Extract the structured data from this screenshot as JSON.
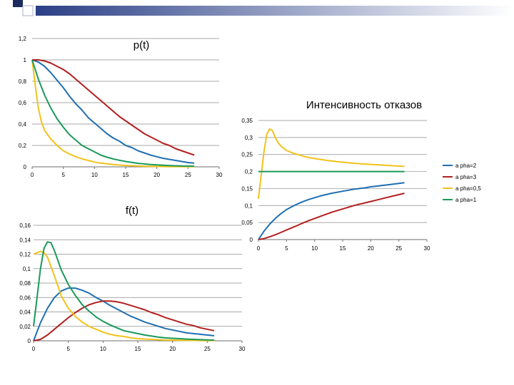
{
  "colors": {
    "alpha2": "#1f6fb2",
    "alpha3": "#b3201f",
    "alpha05": "#f2c21a",
    "alpha1": "#1a9a5a",
    "grid": "#8c8c8c",
    "axis": "#6e6e6e",
    "text": "#000000",
    "header_dark": "#1c2a5c",
    "header_gradient_start": "#2a3f86",
    "header_gradient_end": "#ffffff"
  },
  "chart_data": [
    {
      "id": "p",
      "type": "line",
      "title": "p(t)",
      "xlabel": "",
      "ylabel": "",
      "xlim": [
        0,
        30
      ],
      "ylim": [
        0,
        1.2
      ],
      "x_ticks": [
        0,
        5,
        10,
        15,
        20,
        25,
        30
      ],
      "y_ticks": [
        0,
        0.2,
        0.4,
        0.6,
        0.8,
        1,
        1.2
      ],
      "x_tick_labels": [
        "0",
        "5",
        "10",
        "15",
        "20",
        "25",
        "30"
      ],
      "y_tick_labels": [
        "0",
        "0,2",
        "0,4",
        "0,6",
        "0,8",
        "1",
        "1,2"
      ],
      "series": [
        {
          "name": "alpha=2",
          "color_key": "alpha2",
          "x": [
            0,
            1,
            2,
            3,
            4,
            5,
            6,
            7,
            8,
            9,
            10,
            11,
            12,
            13,
            14,
            15,
            16,
            17,
            18,
            19,
            20,
            21,
            22,
            23,
            24,
            25,
            26
          ],
          "values": [
            1,
            0.98,
            0.94,
            0.88,
            0.81,
            0.74,
            0.66,
            0.59,
            0.53,
            0.46,
            0.41,
            0.36,
            0.31,
            0.27,
            0.24,
            0.2,
            0.18,
            0.15,
            0.13,
            0.11,
            0.095,
            0.08,
            0.07,
            0.06,
            0.05,
            0.04,
            0.035
          ]
        },
        {
          "name": "alpha=3",
          "color_key": "alpha3",
          "x": [
            0,
            1,
            2,
            3,
            4,
            5,
            6,
            7,
            8,
            9,
            10,
            11,
            12,
            13,
            14,
            15,
            16,
            17,
            18,
            19,
            20,
            21,
            22,
            23,
            24,
            25,
            26
          ],
          "values": [
            1,
            1,
            0.99,
            0.97,
            0.94,
            0.91,
            0.87,
            0.82,
            0.77,
            0.72,
            0.67,
            0.62,
            0.57,
            0.52,
            0.47,
            0.43,
            0.39,
            0.35,
            0.31,
            0.28,
            0.25,
            0.22,
            0.2,
            0.17,
            0.15,
            0.13,
            0.11
          ]
        },
        {
          "name": "alpha=0,5",
          "color_key": "alpha05",
          "x": [
            0,
            0.5,
            1,
            1.5,
            2,
            3,
            4,
            5,
            6,
            7,
            8,
            9,
            10,
            11,
            12,
            13,
            14,
            15,
            16,
            17,
            18,
            19,
            20,
            21,
            22,
            23,
            24,
            25,
            26
          ],
          "values": [
            1,
            0.76,
            0.55,
            0.42,
            0.34,
            0.26,
            0.2,
            0.15,
            0.12,
            0.095,
            0.075,
            0.06,
            0.045,
            0.035,
            0.028,
            0.022,
            0.017,
            0.013,
            0.01,
            0.008,
            0.006,
            0.005,
            0.004,
            0.003,
            0.002,
            0.002,
            0.001,
            0.001,
            0.001
          ]
        },
        {
          "name": "alpha=1",
          "color_key": "alpha1",
          "x": [
            0,
            1,
            2,
            3,
            4,
            5,
            6,
            7,
            8,
            9,
            10,
            11,
            12,
            13,
            14,
            15,
            16,
            17,
            18,
            19,
            20,
            21,
            22,
            23,
            24,
            25,
            26
          ],
          "values": [
            1,
            0.82,
            0.67,
            0.55,
            0.45,
            0.37,
            0.3,
            0.25,
            0.2,
            0.17,
            0.14,
            0.11,
            0.09,
            0.074,
            0.061,
            0.05,
            0.041,
            0.033,
            0.027,
            0.022,
            0.018,
            0.015,
            0.012,
            0.01,
            0.008,
            0.007,
            0.006
          ]
        }
      ]
    },
    {
      "id": "f",
      "type": "line",
      "title": "f(t)",
      "xlabel": "",
      "ylabel": "",
      "xlim": [
        0,
        30
      ],
      "ylim": [
        0,
        0.16
      ],
      "x_ticks": [
        0,
        5,
        10,
        15,
        20,
        25,
        30
      ],
      "y_ticks": [
        0,
        0.02,
        0.04,
        0.06,
        0.08,
        0.1,
        0.12,
        0.14,
        0.16
      ],
      "x_tick_labels": [
        "0",
        "5",
        "10",
        "15",
        "20",
        "25",
        "30"
      ],
      "y_tick_labels": [
        "0",
        "0,02",
        "0,04",
        "0,06",
        "0,08",
        "0,1",
        "0,12",
        "0,14",
        "0,16"
      ],
      "series": [
        {
          "name": "alpha=2",
          "color_key": "alpha2",
          "x": [
            0,
            1,
            2,
            3,
            4,
            5,
            6,
            7,
            8,
            9,
            10,
            11,
            12,
            13,
            14,
            15,
            16,
            17,
            18,
            19,
            20,
            21,
            22,
            23,
            24,
            25,
            26
          ],
          "values": [
            0,
            0.025,
            0.045,
            0.06,
            0.069,
            0.073,
            0.073,
            0.07,
            0.066,
            0.06,
            0.055,
            0.049,
            0.044,
            0.039,
            0.034,
            0.03,
            0.026,
            0.023,
            0.02,
            0.017,
            0.015,
            0.013,
            0.011,
            0.01,
            0.009,
            0.008,
            0.007
          ]
        },
        {
          "name": "alpha=3",
          "color_key": "alpha3",
          "x": [
            0,
            1,
            2,
            3,
            4,
            5,
            6,
            7,
            8,
            9,
            10,
            11,
            12,
            13,
            14,
            15,
            16,
            17,
            18,
            19,
            20,
            21,
            22,
            23,
            24,
            25,
            26
          ],
          "values": [
            0,
            0.002,
            0.008,
            0.016,
            0.024,
            0.032,
            0.039,
            0.045,
            0.05,
            0.053,
            0.055,
            0.055,
            0.054,
            0.052,
            0.049,
            0.046,
            0.043,
            0.039,
            0.036,
            0.032,
            0.029,
            0.026,
            0.023,
            0.021,
            0.018,
            0.016,
            0.014
          ]
        },
        {
          "name": "alpha=0,5",
          "color_key": "alpha05",
          "x": [
            0,
            0.5,
            1,
            1.5,
            2,
            3,
            4,
            5,
            6,
            7,
            8,
            9,
            10,
            11,
            12,
            13,
            14,
            15,
            16,
            17,
            18,
            19,
            20,
            21,
            22,
            23,
            24,
            25,
            26
          ],
          "values": [
            0.12,
            0.122,
            0.124,
            0.122,
            0.116,
            0.09,
            0.062,
            0.045,
            0.034,
            0.026,
            0.02,
            0.016,
            0.012,
            0.009,
            0.007,
            0.006,
            0.004,
            0.003,
            0.0025,
            0.002,
            0.0015,
            0.001,
            0.001,
            0.0008,
            0.0006,
            0.0005,
            0.0004,
            0.0003,
            0.0002
          ]
        },
        {
          "name": "alpha=1",
          "color_key": "alpha1",
          "x": [
            0,
            0.5,
            1,
            1.5,
            2,
            2.5,
            3,
            4,
            5,
            6,
            7,
            8,
            9,
            10,
            11,
            12,
            13,
            14,
            15,
            16,
            17,
            18,
            19,
            20,
            21,
            22,
            23,
            24,
            25,
            26
          ],
          "values": [
            0.02,
            0.06,
            0.1,
            0.128,
            0.137,
            0.136,
            0.125,
            0.098,
            0.078,
            0.063,
            0.05,
            0.041,
            0.033,
            0.027,
            0.022,
            0.018,
            0.014,
            0.012,
            0.01,
            0.008,
            0.0065,
            0.005,
            0.004,
            0.0035,
            0.003,
            0.0024,
            0.002,
            0.0016,
            0.0013,
            0.001
          ]
        }
      ]
    },
    {
      "id": "lambda",
      "type": "line",
      "title": "Интенсивность отказов",
      "xlabel": "",
      "ylabel": "",
      "xlim": [
        0,
        30
      ],
      "ylim": [
        0,
        0.35
      ],
      "x_ticks": [
        0,
        5,
        10,
        15,
        20,
        25,
        30
      ],
      "y_ticks": [
        0,
        0.05,
        0.1,
        0.15,
        0.2,
        0.25,
        0.3,
        0.35
      ],
      "x_tick_labels": [
        "0",
        "5",
        "10",
        "15",
        "20",
        "25",
        "30"
      ],
      "y_tick_labels": [
        "0",
        "0,05",
        "0,1",
        "0,15",
        "0,2",
        "0,25",
        "0,3",
        "0,35"
      ],
      "legend_position": "right",
      "series": [
        {
          "name": "alpha=2",
          "legend_label": "a pha=2",
          "color_key": "alpha2",
          "x": [
            0,
            1,
            2,
            3,
            4,
            5,
            6,
            7,
            8,
            9,
            10,
            11,
            12,
            13,
            14,
            15,
            16,
            17,
            18,
            19,
            20,
            21,
            22,
            23,
            24,
            25,
            26
          ],
          "values": [
            0,
            0.025,
            0.045,
            0.062,
            0.076,
            0.088,
            0.097,
            0.105,
            0.112,
            0.118,
            0.123,
            0.128,
            0.132,
            0.136,
            0.139,
            0.142,
            0.145,
            0.148,
            0.15,
            0.152,
            0.155,
            0.157,
            0.159,
            0.161,
            0.163,
            0.165,
            0.167
          ]
        },
        {
          "name": "alpha=3",
          "legend_label": "a pha=3",
          "color_key": "alpha3",
          "x": [
            0,
            1,
            2,
            3,
            4,
            5,
            6,
            7,
            8,
            9,
            10,
            11,
            12,
            13,
            14,
            15,
            16,
            17,
            18,
            19,
            20,
            21,
            22,
            23,
            24,
            25,
            26
          ],
          "values": [
            0,
            0.003,
            0.008,
            0.014,
            0.021,
            0.028,
            0.035,
            0.042,
            0.049,
            0.056,
            0.062,
            0.068,
            0.074,
            0.08,
            0.085,
            0.09,
            0.095,
            0.1,
            0.104,
            0.108,
            0.112,
            0.116,
            0.12,
            0.124,
            0.128,
            0.132,
            0.136
          ]
        },
        {
          "name": "alpha=0,5",
          "legend_label": "a pha=0,5",
          "color_key": "alpha05",
          "x": [
            0,
            0.5,
            1,
            1.5,
            2,
            2.5,
            3,
            3.5,
            4,
            5,
            6,
            7,
            8,
            9,
            10,
            12,
            14,
            16,
            18,
            20,
            22,
            24,
            26
          ],
          "values": [
            0.12,
            0.19,
            0.26,
            0.31,
            0.325,
            0.32,
            0.3,
            0.285,
            0.275,
            0.262,
            0.255,
            0.25,
            0.245,
            0.241,
            0.238,
            0.233,
            0.229,
            0.226,
            0.223,
            0.221,
            0.219,
            0.217,
            0.215
          ]
        },
        {
          "name": "alpha=1",
          "legend_label": "a pha=1",
          "color_key": "alpha1",
          "x": [
            0,
            26
          ],
          "values": [
            0.2,
            0.2
          ]
        }
      ]
    }
  ]
}
